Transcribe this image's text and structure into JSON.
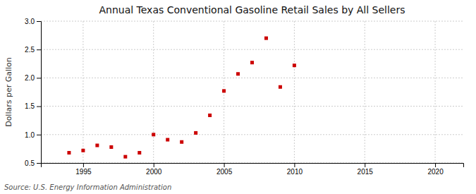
{
  "chart_data": {
    "type": "scatter",
    "title": "Annual Texas Conventional Gasoline Retail Sales by All Sellers",
    "ylabel": "Dollars per Gallon",
    "annotation": "Source: U.S. Energy Information Administration",
    "x": [
      1994,
      1995,
      1996,
      1997,
      1998,
      1999,
      2000,
      2001,
      2002,
      2003,
      2004,
      2005,
      2006,
      2007,
      2008,
      2009,
      2010
    ],
    "values": [
      0.68,
      0.72,
      0.81,
      0.78,
      0.61,
      0.68,
      1.0,
      0.91,
      0.87,
      1.03,
      1.34,
      1.77,
      2.07,
      2.27,
      2.7,
      1.84,
      2.22
    ],
    "color": "#cc0000",
    "marker": "square",
    "xlim": [
      1992,
      2022
    ],
    "ylim": [
      0.5,
      3.0
    ],
    "xticks": [
      1995,
      2000,
      2005,
      2010,
      2015,
      2020
    ],
    "yticks": [
      0.5,
      {
        "value": 1.0,
        "label": "1.0"
      },
      1.5,
      {
        "value": 2.0,
        "label": "2.0"
      },
      2.5,
      {
        "value": 3.0,
        "label": "3.0"
      }
    ],
    "grid": true
  }
}
